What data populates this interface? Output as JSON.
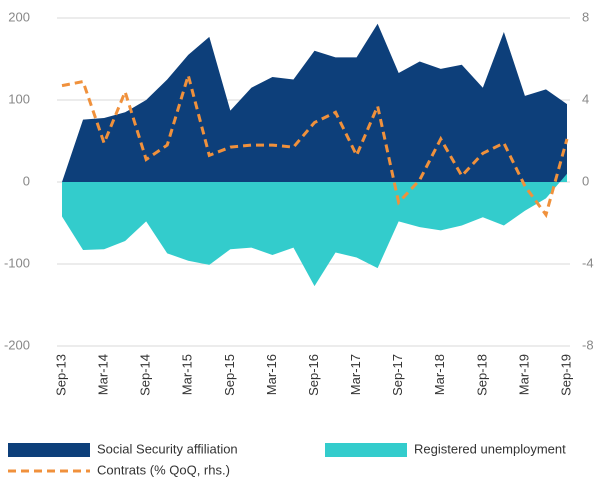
{
  "chart_data": {
    "type": "area",
    "categories": [
      "Sep-13",
      null,
      "Mar-14",
      null,
      "Sep-14",
      null,
      "Mar-15",
      null,
      "Sep-15",
      null,
      "Mar-16",
      null,
      "Sep-16",
      null,
      "Mar-17",
      null,
      "Sep-17",
      null,
      "Mar-18",
      null,
      "Sep-18",
      null,
      "Mar-19",
      null,
      "Sep-19"
    ],
    "series": [
      {
        "name": "Social Security affiliation",
        "color": "#0d3f7a",
        "kind": "area",
        "values": [
          0,
          76,
          78,
          85,
          100,
          125,
          155,
          177,
          87,
          115,
          128,
          125,
          160,
          152,
          152,
          193,
          133,
          147,
          138,
          143,
          115,
          183,
          105,
          113,
          95
        ]
      },
      {
        "name": "Registered unemployment",
        "color": "#33cccc",
        "kind": "area",
        "values": [
          -42,
          -83,
          -82,
          -72,
          -48,
          -87,
          -96,
          -101,
          -82,
          -80,
          -89,
          -80,
          -127,
          -86,
          -92,
          -105,
          -48,
          -55,
          -59,
          -53,
          -43,
          -53,
          -35,
          -20,
          10
        ]
      },
      {
        "name": "Contrats (% QoQ, rhs.)",
        "color": "#f0913c",
        "kind": "line",
        "axis": "y2",
        "values": [
          4.7,
          4.9,
          1.9,
          4.4,
          1.1,
          1.8,
          5.2,
          1.3,
          1.7,
          1.8,
          1.8,
          1.7,
          2.9,
          3.4,
          1.3,
          3.7,
          -1.0,
          0.1,
          2.1,
          0.3,
          1.4,
          1.9,
          -0.2,
          -1.6,
          2.1
        ]
      }
    ],
    "ylim": [
      -200,
      200
    ],
    "yticks": [
      -200,
      -100,
      0,
      100,
      200
    ],
    "y2lim": [
      -8,
      8
    ],
    "y2ticks": [
      -8,
      -4,
      0,
      4,
      8
    ],
    "grid": true
  }
}
